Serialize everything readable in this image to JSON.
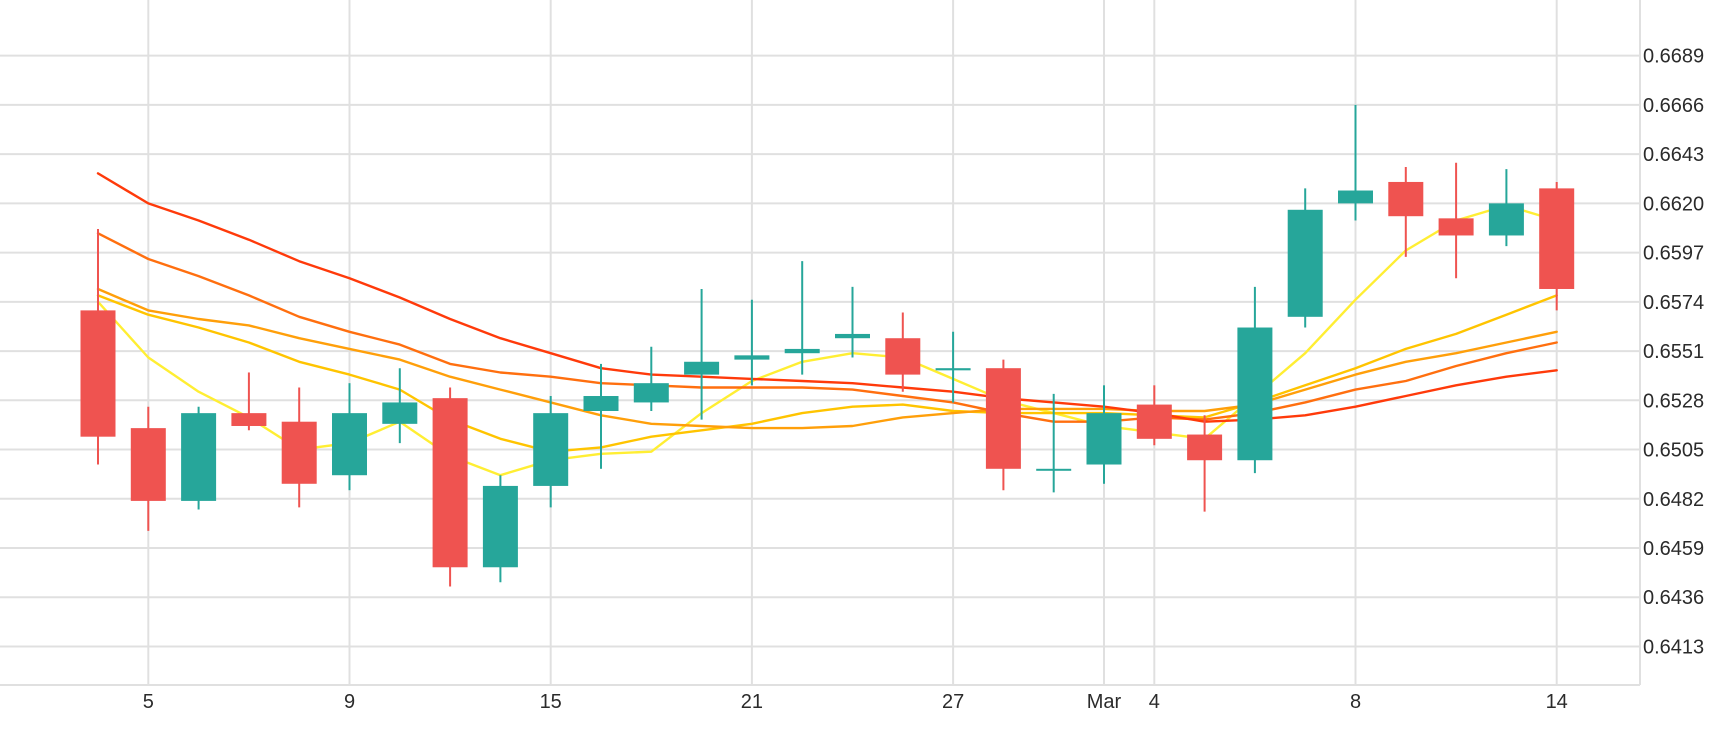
{
  "chart_data": {
    "type": "candlestick",
    "title": "",
    "xlabel": "",
    "ylabel": "",
    "ylim": [
      0.6395,
      0.6715
    ],
    "grid": true,
    "y_axis_position": "right",
    "y_ticks": [
      "0.6413",
      "0.6436",
      "0.6459",
      "0.6482",
      "0.6505",
      "0.6528",
      "0.6551",
      "0.6574",
      "0.6597",
      "0.6620",
      "0.6643",
      "0.6666",
      "0.6689"
    ],
    "x_ticks": [
      {
        "label": "5",
        "t": 1
      },
      {
        "label": "9",
        "t": 5
      },
      {
        "label": "15",
        "t": 9
      },
      {
        "label": "21",
        "t": 13
      },
      {
        "label": "27",
        "t": 17
      },
      {
        "label": "Mar",
        "t": 20
      },
      {
        "label": "4",
        "t": 21
      },
      {
        "label": "8",
        "t": 25
      },
      {
        "label": "14",
        "t": 29
      }
    ],
    "candles": [
      {
        "t": 0,
        "open": 0.657,
        "high": 0.6608,
        "low": 0.6498,
        "close": 0.6511
      },
      {
        "t": 1,
        "open": 0.6515,
        "high": 0.6525,
        "low": 0.6467,
        "close": 0.6481
      },
      {
        "t": 2,
        "open": 0.6481,
        "high": 0.6525,
        "low": 0.6477,
        "close": 0.6522
      },
      {
        "t": 3,
        "open": 0.6522,
        "high": 0.6541,
        "low": 0.6514,
        "close": 0.6516
      },
      {
        "t": 4,
        "open": 0.6518,
        "high": 0.6534,
        "low": 0.6478,
        "close": 0.6489
      },
      {
        "t": 5,
        "open": 0.6493,
        "high": 0.6536,
        "low": 0.6486,
        "close": 0.6522
      },
      {
        "t": 6,
        "open": 0.6517,
        "high": 0.6543,
        "low": 0.6508,
        "close": 0.6527
      },
      {
        "t": 7,
        "open": 0.6529,
        "high": 0.6534,
        "low": 0.6441,
        "close": 0.645
      },
      {
        "t": 8,
        "open": 0.645,
        "high": 0.6493,
        "low": 0.6443,
        "close": 0.6488
      },
      {
        "t": 9,
        "open": 0.6488,
        "high": 0.653,
        "low": 0.6478,
        "close": 0.6522
      },
      {
        "t": 10,
        "open": 0.6523,
        "high": 0.6545,
        "low": 0.6496,
        "close": 0.653
      },
      {
        "t": 11,
        "open": 0.6527,
        "high": 0.6553,
        "low": 0.6523,
        "close": 0.6536
      },
      {
        "t": 12,
        "open": 0.654,
        "high": 0.658,
        "low": 0.6519,
        "close": 0.6546
      },
      {
        "t": 13,
        "open": 0.6547,
        "high": 0.6575,
        "low": 0.6535,
        "close": 0.6549
      },
      {
        "t": 14,
        "open": 0.655,
        "high": 0.6593,
        "low": 0.654,
        "close": 0.6552
      },
      {
        "t": 15,
        "open": 0.6557,
        "high": 0.6581,
        "low": 0.6548,
        "close": 0.6559
      },
      {
        "t": 16,
        "open": 0.6557,
        "high": 0.6569,
        "low": 0.6532,
        "close": 0.654
      },
      {
        "t": 17,
        "open": 0.6542,
        "high": 0.656,
        "low": 0.6527,
        "close": 0.6543
      },
      {
        "t": 18,
        "open": 0.6543,
        "high": 0.6547,
        "low": 0.6486,
        "close": 0.6496
      },
      {
        "t": 19,
        "open": 0.6496,
        "high": 0.6531,
        "low": 0.6485,
        "close": 0.6496
      },
      {
        "t": 20,
        "open": 0.6498,
        "high": 0.6535,
        "low": 0.6489,
        "close": 0.6522
      },
      {
        "t": 21,
        "open": 0.6526,
        "high": 0.6535,
        "low": 0.6507,
        "close": 0.651
      },
      {
        "t": 22,
        "open": 0.6512,
        "high": 0.6521,
        "low": 0.6476,
        "close": 0.65
      },
      {
        "t": 23,
        "open": 0.65,
        "high": 0.6581,
        "low": 0.6494,
        "close": 0.6562
      },
      {
        "t": 24,
        "open": 0.6567,
        "high": 0.6627,
        "low": 0.6562,
        "close": 0.6617
      },
      {
        "t": 25,
        "open": 0.662,
        "high": 0.6666,
        "low": 0.6612,
        "close": 0.6626
      },
      {
        "t": 26,
        "open": 0.663,
        "high": 0.6637,
        "low": 0.6595,
        "close": 0.6614
      },
      {
        "t": 27,
        "open": 0.6613,
        "high": 0.6639,
        "low": 0.6585,
        "close": 0.6605
      },
      {
        "t": 28,
        "open": 0.6605,
        "high": 0.6636,
        "low": 0.66,
        "close": 0.662
      },
      {
        "t": 29,
        "open": 0.6627,
        "high": 0.663,
        "low": 0.657,
        "close": 0.658
      }
    ],
    "series": [
      {
        "color": "#ffee33",
        "values": [
          0.6574,
          0.6548,
          0.6532,
          0.652,
          0.6505,
          0.6508,
          0.6518,
          0.6502,
          0.6493,
          0.65,
          0.6503,
          0.6504,
          0.6522,
          0.6537,
          0.6546,
          0.655,
          0.6548,
          0.6538,
          0.6528,
          0.6522,
          0.6516,
          0.6513,
          0.651,
          0.653,
          0.655,
          0.6575,
          0.6598,
          0.6612,
          0.6619,
          0.6612
        ]
      },
      {
        "color": "#ffc400",
        "values": [
          0.6577,
          0.6568,
          0.6562,
          0.6555,
          0.6546,
          0.654,
          0.6533,
          0.6519,
          0.651,
          0.6504,
          0.6506,
          0.6511,
          0.6514,
          0.6517,
          0.6522,
          0.6525,
          0.6526,
          0.6523,
          0.6522,
          0.6522,
          0.6522,
          0.6521,
          0.652,
          0.6527,
          0.6535,
          0.6543,
          0.6552,
          0.6559,
          0.6568,
          0.6577
        ]
      },
      {
        "color": "#ff9f0a",
        "values": [
          0.658,
          0.657,
          0.6566,
          0.6563,
          0.6557,
          0.6552,
          0.6547,
          0.6539,
          0.6533,
          0.6527,
          0.6521,
          0.6517,
          0.6516,
          0.6515,
          0.6515,
          0.6516,
          0.652,
          0.6522,
          0.6524,
          0.6524,
          0.6524,
          0.6523,
          0.6523,
          0.6526,
          0.6533,
          0.654,
          0.6546,
          0.655,
          0.6555,
          0.656
        ]
      },
      {
        "color": "#ff6f0f",
        "values": [
          0.6606,
          0.6594,
          0.6586,
          0.6577,
          0.6567,
          0.656,
          0.6554,
          0.6545,
          0.6541,
          0.6539,
          0.6536,
          0.6535,
          0.6534,
          0.6534,
          0.6534,
          0.6533,
          0.653,
          0.6527,
          0.6522,
          0.6518,
          0.6518,
          0.652,
          0.6519,
          0.6522,
          0.6527,
          0.6533,
          0.6537,
          0.6544,
          0.655,
          0.6555
        ]
      },
      {
        "color": "#ff3a0a",
        "values": [
          0.6634,
          0.662,
          0.6612,
          0.6603,
          0.6593,
          0.6585,
          0.6576,
          0.6566,
          0.6557,
          0.655,
          0.6543,
          0.654,
          0.6539,
          0.6538,
          0.6537,
          0.6536,
          0.6534,
          0.6532,
          0.6529,
          0.6527,
          0.6525,
          0.6522,
          0.6518,
          0.6519,
          0.6521,
          0.6525,
          0.653,
          0.6535,
          0.6539,
          0.6542
        ]
      }
    ],
    "colors": {
      "up": "#26a69a",
      "down": "#ef5350",
      "grid": "#e0e0e0",
      "axis_text": "#2b2b2b"
    }
  }
}
